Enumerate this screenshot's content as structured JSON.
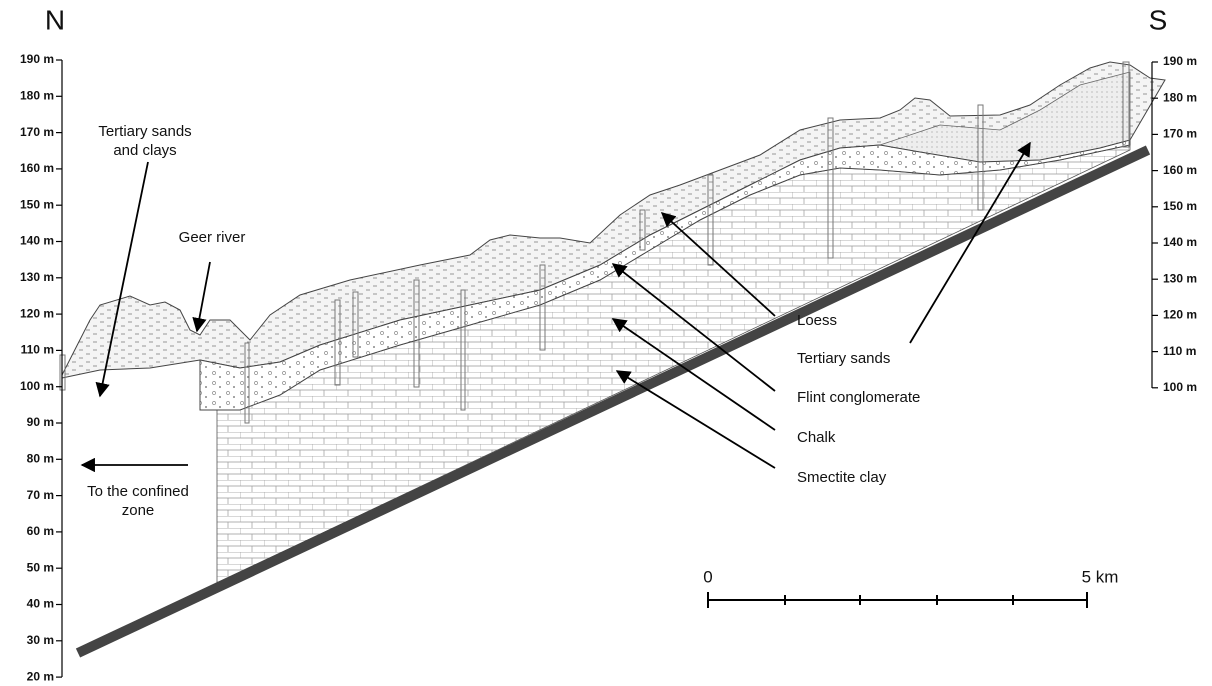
{
  "compass": {
    "north": "N",
    "south": "S"
  },
  "left_axis": {
    "ticks": [
      "190 m",
      "180 m",
      "170 m",
      "160 m",
      "150 m",
      "140 m",
      "130 m",
      "120 m",
      "110 m",
      "100 m",
      "90 m",
      "80 m",
      "70 m",
      "60 m",
      "50 m",
      "40 m",
      "30 m",
      "20 m"
    ]
  },
  "right_axis": {
    "ticks": [
      "190 m",
      "180 m",
      "170 m",
      "160 m",
      "150 m",
      "140 m",
      "130 m",
      "120 m",
      "110 m",
      "100 m"
    ]
  },
  "labels": {
    "tertiary_sands_clays": [
      "Tertiary sands",
      "and clays"
    ],
    "geer_river": "Geer river",
    "confined_zone": [
      "To the confined",
      "zone"
    ],
    "loess": "Loess",
    "tertiary_sands": "Tertiary sands",
    "flint": "Flint conglomerate",
    "chalk": "Chalk",
    "smectite": "Smectite clay"
  },
  "scale_bar": {
    "start": "0",
    "end": "5 km"
  }
}
